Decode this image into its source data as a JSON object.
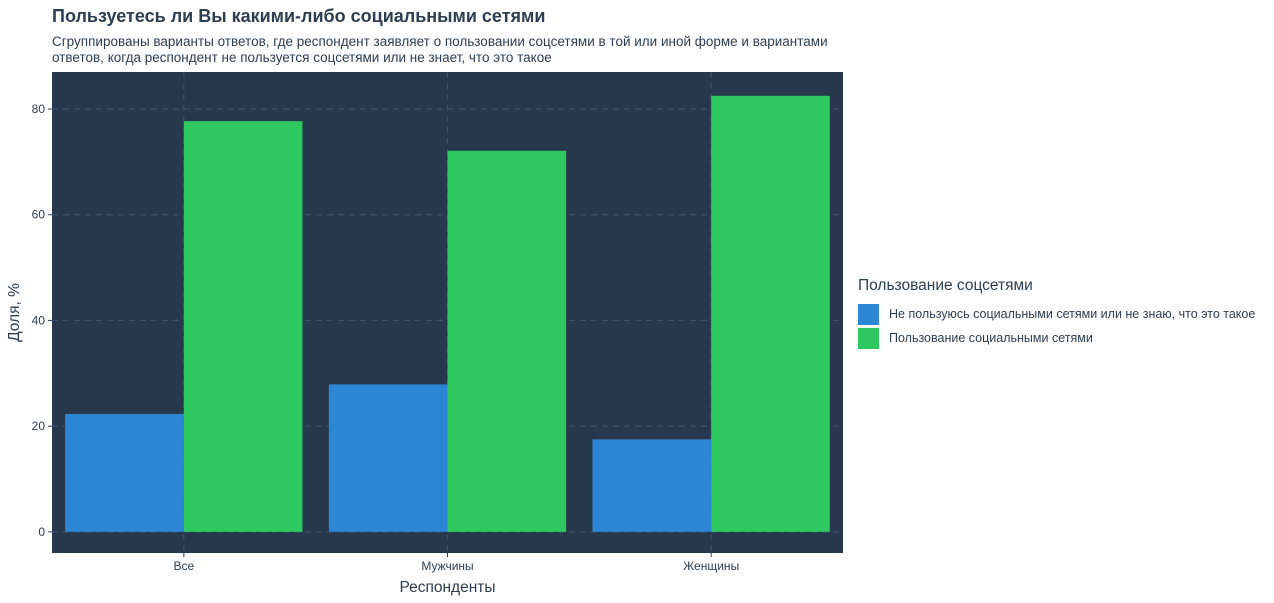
{
  "chart_data": {
    "type": "bar",
    "title": "Пользуетесь ли Вы какими-либо социальными сетями",
    "subtitle": "Сгруппированы варианты ответов, где респондент заявляет о пользовании соцсетями в той или иной форме и вариантами\n ответов, когда респондент не пользуется соцсетями или не знает, что это такое",
    "xlabel": "Респонденты",
    "ylabel": "Доля, %",
    "categories": [
      "Все",
      "Мужчины",
      "Женщины"
    ],
    "series": [
      {
        "name": "Не пользуюсь социальными сетями или не знаю, что это такое",
        "color": "#2b86d4",
        "values": [
          22.3,
          27.9,
          17.5
        ]
      },
      {
        "name": "Пользование социальными сетями",
        "color": "#2dc85f",
        "values": [
          77.7,
          72.1,
          82.5
        ]
      }
    ],
    "ylim": [
      -4,
      87
    ],
    "yticks": [
      0,
      20,
      40,
      60,
      80
    ],
    "grid": true,
    "legend_title": "Пользование соцсетями",
    "legend_position": "right",
    "panel_color": "#27384c",
    "grid_color": "#3e5068"
  }
}
